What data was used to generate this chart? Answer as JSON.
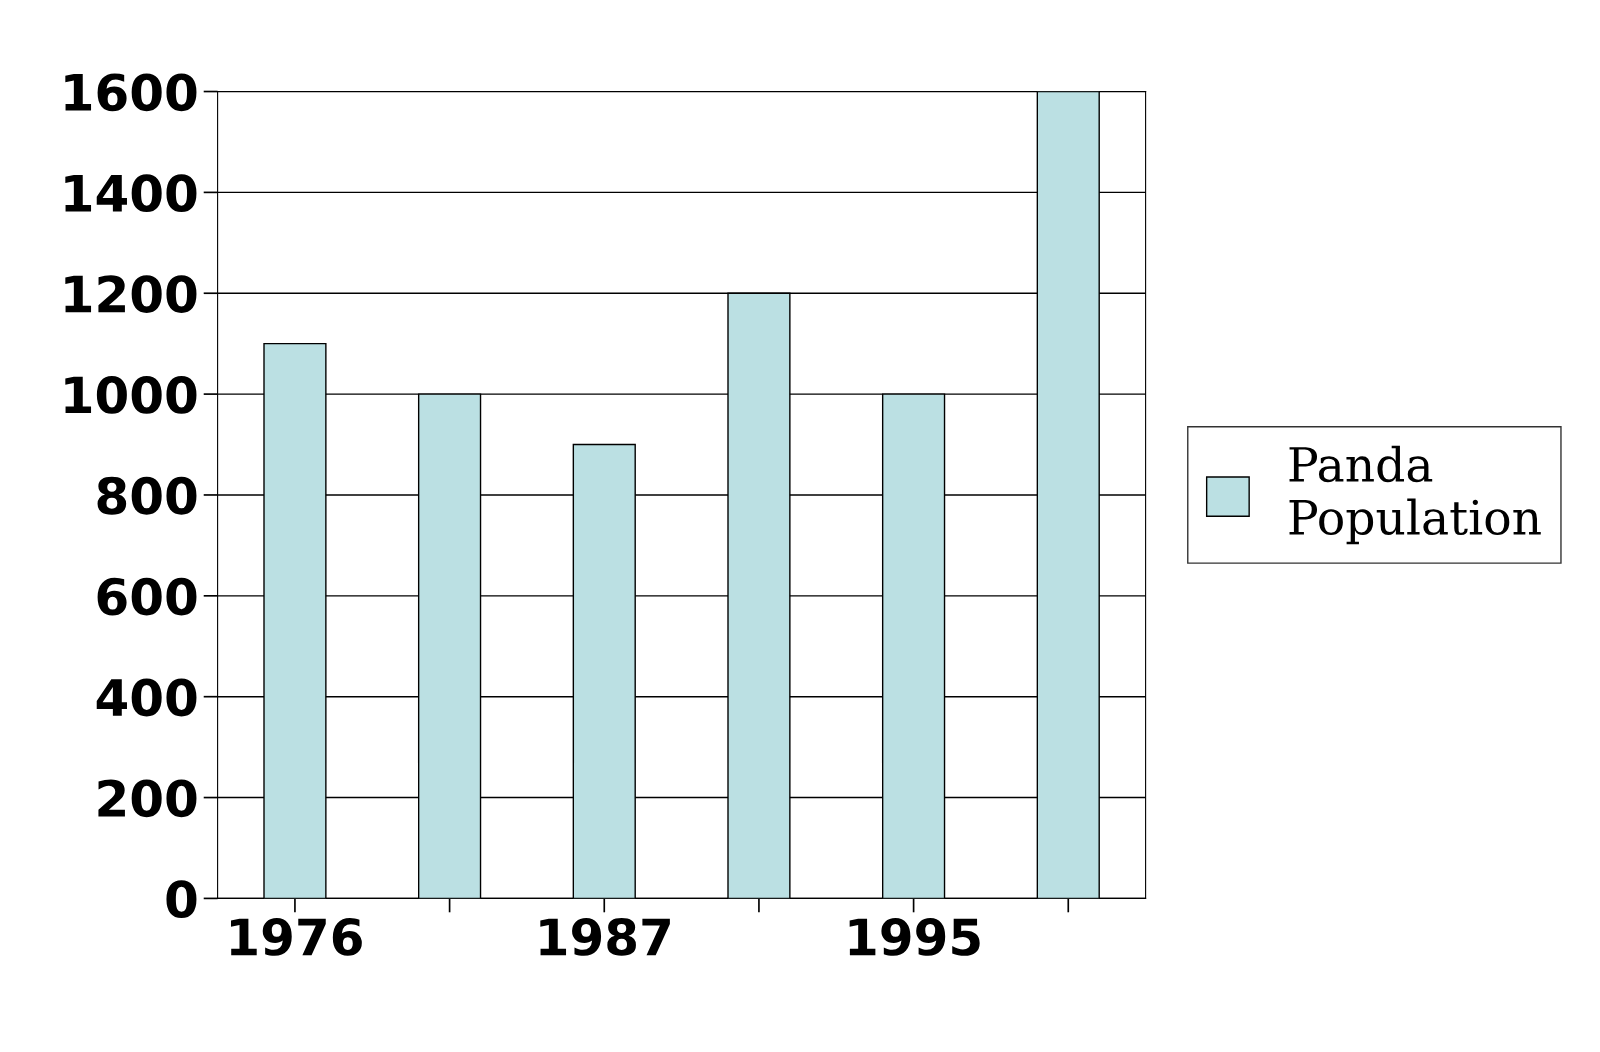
{
  "chart_data": {
    "type": "bar",
    "categories": [
      "1976",
      null,
      "1987",
      null,
      "1995",
      null
    ],
    "series": [
      {
        "name": "Panda Population",
        "color": "#bbe0e3",
        "values": [
          1100,
          1000,
          900,
          1200,
          1000,
          1600
        ]
      }
    ],
    "ylim": [
      0,
      1600
    ],
    "yticks": [
      0,
      200,
      400,
      600,
      800,
      1000,
      1200,
      1400,
      1600
    ],
    "grid": "y",
    "legend": "right"
  }
}
